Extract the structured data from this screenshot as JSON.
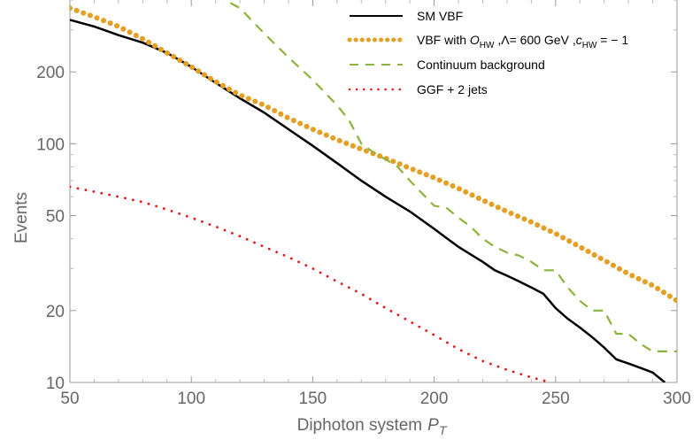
{
  "chart_data": {
    "type": "line",
    "title": "",
    "xlabel": "Diphoton system",
    "xlabel_symbol": "P",
    "xlabel_subscript": "T",
    "ylabel": "Events",
    "xlim": [
      50,
      300
    ],
    "ylim": [
      10,
      400
    ],
    "y_scale": "log",
    "x_ticks": [
      50,
      100,
      150,
      200,
      250,
      300
    ],
    "x_tick_labels": [
      "50",
      "100",
      "150",
      "200",
      "250",
      "300"
    ],
    "y_ticks": [
      10,
      20,
      50,
      100,
      200
    ],
    "y_tick_labels": [
      "10",
      "20",
      "50",
      "100",
      "200"
    ],
    "grid": false,
    "legend_position": "top-right",
    "series": [
      {
        "name": "SM  VBF",
        "color": "#000000",
        "style": "solid",
        "x": [
          50,
          60,
          70,
          80,
          90,
          100,
          110,
          120,
          130,
          140,
          150,
          160,
          170,
          180,
          190,
          200,
          210,
          220,
          225,
          230,
          235,
          240,
          245,
          250,
          255,
          260,
          265,
          270,
          275,
          280,
          285,
          290,
          295
        ],
        "y": [
          330,
          310,
          285,
          265,
          240,
          210,
          180,
          155,
          135,
          115,
          98,
          83,
          70,
          60,
          52,
          44,
          37,
          32,
          29.5,
          28,
          26.5,
          25,
          23.5,
          20.5,
          18.5,
          17,
          15.5,
          14,
          12.5,
          12,
          11.5,
          11,
          10
        ]
      },
      {
        "name": "VBF  with  O_HW ,Λ= 600  GeV ,c_HW = − 1",
        "legend_prefix": "VBF  with  ",
        "legend_symbol": "O",
        "legend_sub1": "HW",
        "legend_mid": " ,Λ= 600  GeV ,",
        "legend_symbol2": "c",
        "legend_sub2": "HW",
        "legend_suffix": " = − 1",
        "color": "#E59F24",
        "style": "dotted-thick",
        "x": [
          50,
          60,
          70,
          80,
          90,
          100,
          110,
          120,
          130,
          140,
          150,
          160,
          170,
          180,
          190,
          200,
          210,
          220,
          230,
          240,
          250,
          260,
          270,
          280,
          290,
          300
        ],
        "y": [
          370,
          340,
          310,
          275,
          240,
          210,
          182,
          160,
          145,
          128,
          115,
          104,
          95,
          87,
          79,
          72,
          65,
          58,
          52,
          47,
          42,
          37,
          32.5,
          28.5,
          25.5,
          22
        ]
      },
      {
        "name": "Continuum  background",
        "color": "#8DB33D",
        "style": "dashed",
        "x": [
          110,
          120,
          130,
          140,
          150,
          160,
          165,
          170,
          175,
          180,
          185,
          190,
          195,
          200,
          205,
          210,
          215,
          220,
          225,
          230,
          235,
          240,
          245,
          250,
          255,
          260,
          265,
          270,
          275,
          280,
          285,
          290,
          295,
          300
        ],
        "y": [
          420,
          370,
          290,
          230,
          185,
          145,
          125,
          100,
          92,
          86,
          80,
          70,
          62,
          55,
          54,
          49,
          45,
          40,
          37,
          35,
          34,
          32,
          29.5,
          29.5,
          25,
          22,
          20,
          20,
          16,
          16,
          14.5,
          13.5,
          13.5,
          13.5
        ]
      },
      {
        "name": "GGF + 2  jets",
        "color": "#E31A1C",
        "style": "dotted",
        "x": [
          50,
          60,
          70,
          80,
          90,
          100,
          110,
          120,
          130,
          140,
          150,
          160,
          170,
          180,
          190,
          200,
          210,
          220,
          230,
          240,
          248
        ],
        "y": [
          66,
          63,
          60,
          57,
          53,
          49,
          45,
          41,
          37,
          33.5,
          30,
          26.5,
          23.5,
          20.5,
          18,
          15.8,
          13.8,
          12.3,
          11.3,
          10.5,
          10
        ]
      }
    ]
  }
}
